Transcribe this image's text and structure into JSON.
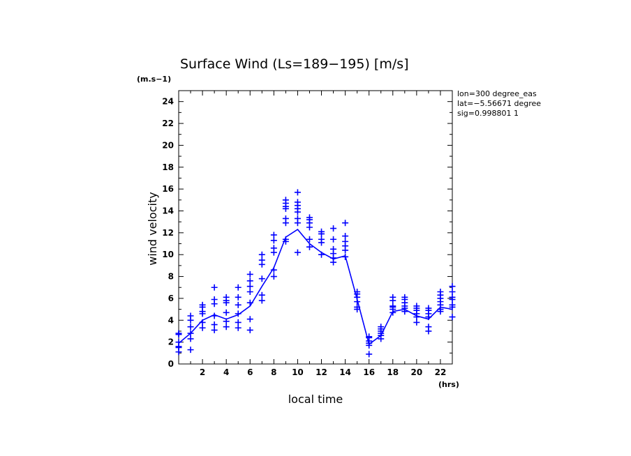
{
  "chart_data": {
    "type": "scatter",
    "title": "Surface Wind  (Ls=189−195) [m/s]",
    "xlabel": "local time",
    "ylabel": "wind velocity",
    "x_unit": "(hrs)",
    "y_unit": "(m.s−1)",
    "xlim": [
      0,
      23
    ],
    "ylim": [
      0,
      25
    ],
    "x_ticks": [
      2,
      4,
      6,
      8,
      10,
      12,
      14,
      16,
      18,
      20,
      22
    ],
    "y_ticks": [
      0,
      2,
      4,
      6,
      8,
      10,
      12,
      14,
      16,
      18,
      20,
      22,
      24
    ],
    "info": [
      "lon=300 degree_eas",
      "lat=−5.56671 degree",
      "sig=0.998801 1"
    ],
    "colors": {
      "series": "#0000ff",
      "axes": "#000000"
    },
    "series": [
      {
        "name": "mean",
        "kind": "line",
        "x": [
          0,
          1,
          2,
          3,
          4,
          5,
          6,
          7,
          8,
          9,
          10,
          11,
          12,
          13,
          14,
          15,
          16,
          17,
          18,
          19,
          20,
          21,
          22,
          23
        ],
        "y": [
          1.9,
          2.8,
          4.0,
          4.5,
          4.1,
          4.5,
          5.3,
          7.1,
          8.8,
          11.6,
          12.3,
          11.0,
          10.2,
          9.6,
          9.9,
          5.9,
          1.8,
          2.6,
          4.8,
          5.0,
          4.4,
          4.1,
          5.2,
          5.0
        ]
      },
      {
        "name": "samples",
        "kind": "scatter",
        "marker": "+",
        "points": [
          [
            0,
            1.1
          ],
          [
            0,
            1.5
          ],
          [
            0,
            1.6
          ],
          [
            0,
            2.0
          ],
          [
            0,
            2.7
          ],
          [
            0,
            2.8
          ],
          [
            1,
            1.3
          ],
          [
            1,
            2.3
          ],
          [
            1,
            2.8
          ],
          [
            1,
            3.4
          ],
          [
            1,
            4.0
          ],
          [
            1,
            4.4
          ],
          [
            2,
            3.3
          ],
          [
            2,
            3.8
          ],
          [
            2,
            4.6
          ],
          [
            2,
            4.8
          ],
          [
            2,
            5.2
          ],
          [
            2,
            5.4
          ],
          [
            3,
            3.1
          ],
          [
            3,
            3.6
          ],
          [
            3,
            4.4
          ],
          [
            3,
            5.5
          ],
          [
            3,
            5.9
          ],
          [
            3,
            7.0
          ],
          [
            4,
            3.4
          ],
          [
            4,
            3.9
          ],
          [
            4,
            4.7
          ],
          [
            4,
            5.6
          ],
          [
            4,
            5.8
          ],
          [
            4,
            6.1
          ],
          [
            5,
            3.3
          ],
          [
            5,
            3.8
          ],
          [
            5,
            4.6
          ],
          [
            5,
            5.4
          ],
          [
            5,
            6.1
          ],
          [
            5,
            7.0
          ],
          [
            6,
            3.1
          ],
          [
            6,
            4.1
          ],
          [
            6,
            5.6
          ],
          [
            6,
            6.6
          ],
          [
            6,
            7.1
          ],
          [
            6,
            7.6
          ],
          [
            6,
            8.2
          ],
          [
            7,
            5.8
          ],
          [
            7,
            6.3
          ],
          [
            7,
            7.8
          ],
          [
            7,
            9.1
          ],
          [
            7,
            9.5
          ],
          [
            7,
            10.0
          ],
          [
            8,
            8.0
          ],
          [
            8,
            8.6
          ],
          [
            8,
            10.2
          ],
          [
            8,
            10.6
          ],
          [
            8,
            11.3
          ],
          [
            8,
            11.8
          ],
          [
            9,
            11.2
          ],
          [
            9,
            11.4
          ],
          [
            9,
            12.9
          ],
          [
            9,
            13.3
          ],
          [
            9,
            14.2
          ],
          [
            9,
            14.4
          ],
          [
            9,
            14.7
          ],
          [
            9,
            15.0
          ],
          [
            10,
            10.2
          ],
          [
            10,
            12.9
          ],
          [
            10,
            13.3
          ],
          [
            10,
            13.9
          ],
          [
            10,
            14.2
          ],
          [
            10,
            14.5
          ],
          [
            10,
            14.8
          ],
          [
            10,
            15.7
          ],
          [
            11,
            10.7
          ],
          [
            11,
            11.4
          ],
          [
            11,
            12.5
          ],
          [
            11,
            12.9
          ],
          [
            11,
            13.2
          ],
          [
            11,
            13.4
          ],
          [
            12,
            10.0
          ],
          [
            12,
            11.1
          ],
          [
            12,
            11.4
          ],
          [
            12,
            11.9
          ],
          [
            12,
            12.1
          ],
          [
            13,
            9.3
          ],
          [
            13,
            9.7
          ],
          [
            13,
            10.1
          ],
          [
            13,
            10.5
          ],
          [
            13,
            11.4
          ],
          [
            13,
            12.4
          ],
          [
            14,
            9.8
          ],
          [
            14,
            10.4
          ],
          [
            14,
            10.8
          ],
          [
            14,
            11.2
          ],
          [
            14,
            11.7
          ],
          [
            14,
            12.9
          ],
          [
            15,
            5.0
          ],
          [
            15,
            5.2
          ],
          [
            15,
            5.7
          ],
          [
            15,
            6.1
          ],
          [
            15,
            6.4
          ],
          [
            15,
            6.6
          ],
          [
            16,
            0.9
          ],
          [
            16,
            1.7
          ],
          [
            16,
            1.9
          ],
          [
            16,
            2.1
          ],
          [
            16,
            2.4
          ],
          [
            16,
            2.5
          ],
          [
            17,
            2.3
          ],
          [
            17,
            2.6
          ],
          [
            17,
            2.8
          ],
          [
            17,
            3.0
          ],
          [
            17,
            3.2
          ],
          [
            17,
            3.4
          ],
          [
            18,
            4.7
          ],
          [
            18,
            5.0
          ],
          [
            18,
            5.2
          ],
          [
            18,
            5.3
          ],
          [
            18,
            5.8
          ],
          [
            18,
            6.1
          ],
          [
            19,
            4.8
          ],
          [
            19,
            5.1
          ],
          [
            19,
            5.3
          ],
          [
            19,
            5.6
          ],
          [
            19,
            5.9
          ],
          [
            19,
            6.1
          ],
          [
            20,
            3.8
          ],
          [
            20,
            4.3
          ],
          [
            20,
            4.6
          ],
          [
            20,
            4.9
          ],
          [
            20,
            5.1
          ],
          [
            20,
            5.3
          ],
          [
            21,
            3.0
          ],
          [
            21,
            3.4
          ],
          [
            21,
            4.3
          ],
          [
            21,
            4.6
          ],
          [
            21,
            4.9
          ],
          [
            21,
            5.1
          ],
          [
            22,
            4.8
          ],
          [
            22,
            5.0
          ],
          [
            22,
            5.4
          ],
          [
            22,
            5.7
          ],
          [
            22,
            6.0
          ],
          [
            22,
            6.3
          ],
          [
            22,
            6.6
          ],
          [
            23,
            4.3
          ],
          [
            23,
            5.2
          ],
          [
            23,
            5.4
          ],
          [
            23,
            5.9
          ],
          [
            23,
            6.1
          ],
          [
            23,
            6.6
          ],
          [
            23,
            7.1
          ]
        ]
      }
    ]
  }
}
